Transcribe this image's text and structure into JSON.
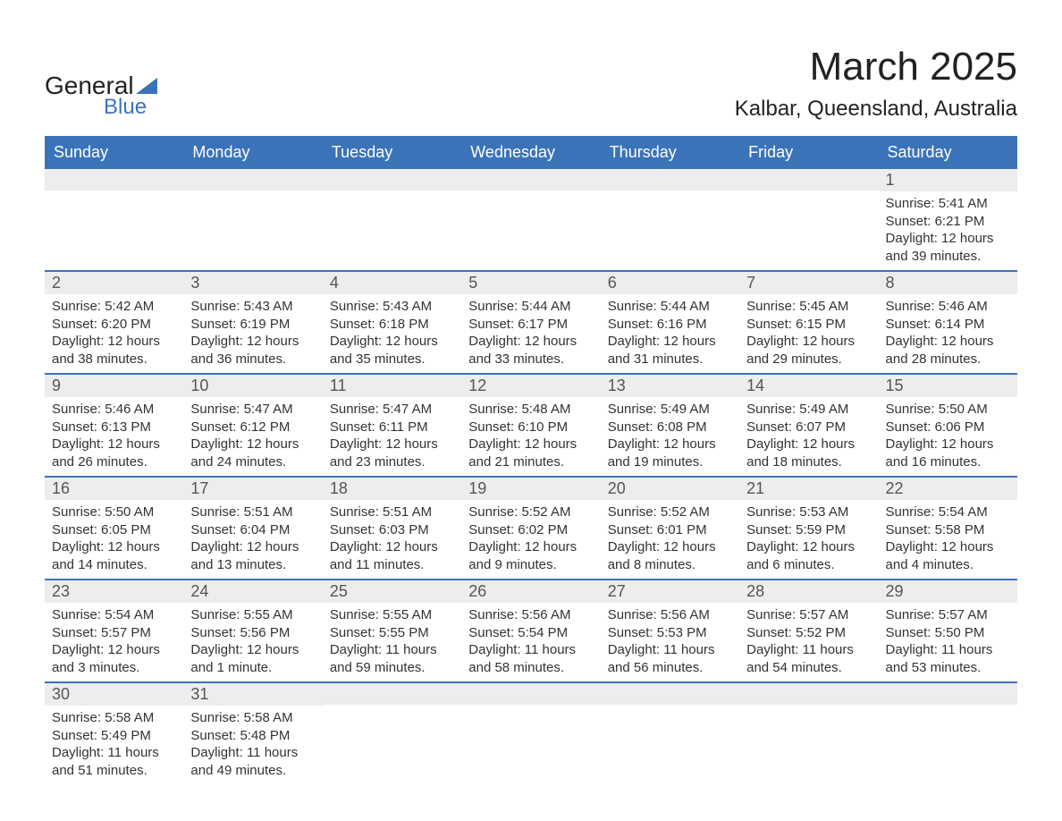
{
  "logo": {
    "text_general": "General",
    "text_blue": "Blue",
    "tri_color": "#3b73b9"
  },
  "title": {
    "month_year": "March 2025",
    "location": "Kalbar, Queensland, Australia"
  },
  "colors": {
    "header_bg": "#3b73b9",
    "header_text": "#ffffff",
    "daynum_bg": "#ededed",
    "week_divider": "#3b73b9",
    "body_text": "#333333",
    "page_bg": "#ffffff"
  },
  "typography": {
    "title_fontsize": 44,
    "location_fontsize": 24,
    "dayhead_fontsize": 18,
    "daynum_fontsize": 18,
    "info_fontsize": 15,
    "font_family": "Arial"
  },
  "day_headers": [
    "Sunday",
    "Monday",
    "Tuesday",
    "Wednesday",
    "Thursday",
    "Friday",
    "Saturday"
  ],
  "weeks": [
    [
      {
        "empty": true
      },
      {
        "empty": true
      },
      {
        "empty": true
      },
      {
        "empty": true
      },
      {
        "empty": true
      },
      {
        "empty": true
      },
      {
        "day": "1",
        "sunrise": "Sunrise: 5:41 AM",
        "sunset": "Sunset: 6:21 PM",
        "dl1": "Daylight: 12 hours",
        "dl2": "and 39 minutes."
      }
    ],
    [
      {
        "day": "2",
        "sunrise": "Sunrise: 5:42 AM",
        "sunset": "Sunset: 6:20 PM",
        "dl1": "Daylight: 12 hours",
        "dl2": "and 38 minutes."
      },
      {
        "day": "3",
        "sunrise": "Sunrise: 5:43 AM",
        "sunset": "Sunset: 6:19 PM",
        "dl1": "Daylight: 12 hours",
        "dl2": "and 36 minutes."
      },
      {
        "day": "4",
        "sunrise": "Sunrise: 5:43 AM",
        "sunset": "Sunset: 6:18 PM",
        "dl1": "Daylight: 12 hours",
        "dl2": "and 35 minutes."
      },
      {
        "day": "5",
        "sunrise": "Sunrise: 5:44 AM",
        "sunset": "Sunset: 6:17 PM",
        "dl1": "Daylight: 12 hours",
        "dl2": "and 33 minutes."
      },
      {
        "day": "6",
        "sunrise": "Sunrise: 5:44 AM",
        "sunset": "Sunset: 6:16 PM",
        "dl1": "Daylight: 12 hours",
        "dl2": "and 31 minutes."
      },
      {
        "day": "7",
        "sunrise": "Sunrise: 5:45 AM",
        "sunset": "Sunset: 6:15 PM",
        "dl1": "Daylight: 12 hours",
        "dl2": "and 29 minutes."
      },
      {
        "day": "8",
        "sunrise": "Sunrise: 5:46 AM",
        "sunset": "Sunset: 6:14 PM",
        "dl1": "Daylight: 12 hours",
        "dl2": "and 28 minutes."
      }
    ],
    [
      {
        "day": "9",
        "sunrise": "Sunrise: 5:46 AM",
        "sunset": "Sunset: 6:13 PM",
        "dl1": "Daylight: 12 hours",
        "dl2": "and 26 minutes."
      },
      {
        "day": "10",
        "sunrise": "Sunrise: 5:47 AM",
        "sunset": "Sunset: 6:12 PM",
        "dl1": "Daylight: 12 hours",
        "dl2": "and 24 minutes."
      },
      {
        "day": "11",
        "sunrise": "Sunrise: 5:47 AM",
        "sunset": "Sunset: 6:11 PM",
        "dl1": "Daylight: 12 hours",
        "dl2": "and 23 minutes."
      },
      {
        "day": "12",
        "sunrise": "Sunrise: 5:48 AM",
        "sunset": "Sunset: 6:10 PM",
        "dl1": "Daylight: 12 hours",
        "dl2": "and 21 minutes."
      },
      {
        "day": "13",
        "sunrise": "Sunrise: 5:49 AM",
        "sunset": "Sunset: 6:08 PM",
        "dl1": "Daylight: 12 hours",
        "dl2": "and 19 minutes."
      },
      {
        "day": "14",
        "sunrise": "Sunrise: 5:49 AM",
        "sunset": "Sunset: 6:07 PM",
        "dl1": "Daylight: 12 hours",
        "dl2": "and 18 minutes."
      },
      {
        "day": "15",
        "sunrise": "Sunrise: 5:50 AM",
        "sunset": "Sunset: 6:06 PM",
        "dl1": "Daylight: 12 hours",
        "dl2": "and 16 minutes."
      }
    ],
    [
      {
        "day": "16",
        "sunrise": "Sunrise: 5:50 AM",
        "sunset": "Sunset: 6:05 PM",
        "dl1": "Daylight: 12 hours",
        "dl2": "and 14 minutes."
      },
      {
        "day": "17",
        "sunrise": "Sunrise: 5:51 AM",
        "sunset": "Sunset: 6:04 PM",
        "dl1": "Daylight: 12 hours",
        "dl2": "and 13 minutes."
      },
      {
        "day": "18",
        "sunrise": "Sunrise: 5:51 AM",
        "sunset": "Sunset: 6:03 PM",
        "dl1": "Daylight: 12 hours",
        "dl2": "and 11 minutes."
      },
      {
        "day": "19",
        "sunrise": "Sunrise: 5:52 AM",
        "sunset": "Sunset: 6:02 PM",
        "dl1": "Daylight: 12 hours",
        "dl2": "and 9 minutes."
      },
      {
        "day": "20",
        "sunrise": "Sunrise: 5:52 AM",
        "sunset": "Sunset: 6:01 PM",
        "dl1": "Daylight: 12 hours",
        "dl2": "and 8 minutes."
      },
      {
        "day": "21",
        "sunrise": "Sunrise: 5:53 AM",
        "sunset": "Sunset: 5:59 PM",
        "dl1": "Daylight: 12 hours",
        "dl2": "and 6 minutes."
      },
      {
        "day": "22",
        "sunrise": "Sunrise: 5:54 AM",
        "sunset": "Sunset: 5:58 PM",
        "dl1": "Daylight: 12 hours",
        "dl2": "and 4 minutes."
      }
    ],
    [
      {
        "day": "23",
        "sunrise": "Sunrise: 5:54 AM",
        "sunset": "Sunset: 5:57 PM",
        "dl1": "Daylight: 12 hours",
        "dl2": "and 3 minutes."
      },
      {
        "day": "24",
        "sunrise": "Sunrise: 5:55 AM",
        "sunset": "Sunset: 5:56 PM",
        "dl1": "Daylight: 12 hours",
        "dl2": "and 1 minute."
      },
      {
        "day": "25",
        "sunrise": "Sunrise: 5:55 AM",
        "sunset": "Sunset: 5:55 PM",
        "dl1": "Daylight: 11 hours",
        "dl2": "and 59 minutes."
      },
      {
        "day": "26",
        "sunrise": "Sunrise: 5:56 AM",
        "sunset": "Sunset: 5:54 PM",
        "dl1": "Daylight: 11 hours",
        "dl2": "and 58 minutes."
      },
      {
        "day": "27",
        "sunrise": "Sunrise: 5:56 AM",
        "sunset": "Sunset: 5:53 PM",
        "dl1": "Daylight: 11 hours",
        "dl2": "and 56 minutes."
      },
      {
        "day": "28",
        "sunrise": "Sunrise: 5:57 AM",
        "sunset": "Sunset: 5:52 PM",
        "dl1": "Daylight: 11 hours",
        "dl2": "and 54 minutes."
      },
      {
        "day": "29",
        "sunrise": "Sunrise: 5:57 AM",
        "sunset": "Sunset: 5:50 PM",
        "dl1": "Daylight: 11 hours",
        "dl2": "and 53 minutes."
      }
    ],
    [
      {
        "day": "30",
        "sunrise": "Sunrise: 5:58 AM",
        "sunset": "Sunset: 5:49 PM",
        "dl1": "Daylight: 11 hours",
        "dl2": "and 51 minutes."
      },
      {
        "day": "31",
        "sunrise": "Sunrise: 5:58 AM",
        "sunset": "Sunset: 5:48 PM",
        "dl1": "Daylight: 11 hours",
        "dl2": "and 49 minutes."
      },
      {
        "empty": true
      },
      {
        "empty": true
      },
      {
        "empty": true
      },
      {
        "empty": true
      },
      {
        "empty": true
      }
    ]
  ]
}
